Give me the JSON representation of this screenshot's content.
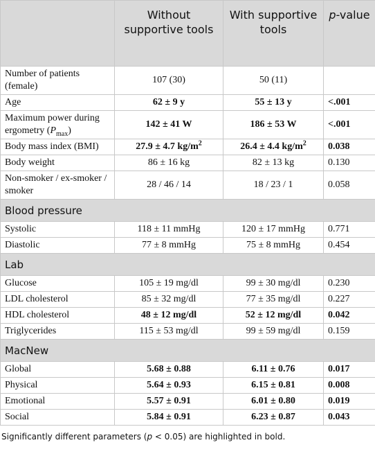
{
  "table": {
    "header": [
      "Without supportive tools",
      "With supportive tools",
      [
        "p",
        "-value"
      ]
    ],
    "general": [
      [
        "Number of patients (female)",
        "107 (30)",
        "50 (11)"
      ],
      [
        "Age",
        "62 ± 9 y",
        "55 ± 13 y",
        "<.001"
      ],
      [
        [
          "Maximum power during ergometry (",
          "P",
          "max",
          ")"
        ],
        "142 ± 41 W",
        "186 ± 53 W",
        "<.001"
      ],
      [
        "Body mass index (BMI)",
        [
          "27.9 ± 4.7 kg/m",
          "2"
        ],
        [
          "26.4 ± 4.4 kg/m",
          "2"
        ],
        "0.038"
      ],
      [
        "Body weight",
        "86 ± 16 kg",
        "82 ± 13 kg",
        "0.130"
      ],
      [
        "Non-smoker / ex-smoker / smoker",
        "28 / 46 / 14",
        "18 / 23 / 1",
        "0.058"
      ]
    ],
    "sections": [
      {
        "title": "Blood pressure",
        "rows": [
          [
            "Systolic",
            "118 ± 11 mmHg",
            "120 ± 17 mmHg",
            "0.771"
          ],
          [
            "Diastolic",
            "77 ± 8 mmHg",
            "75 ± 8 mmHg",
            "0.454"
          ]
        ]
      },
      {
        "title": "Lab",
        "rows": [
          [
            "Glucose",
            "105 ± 19 mg/dl",
            "99 ± 30 mg/dl",
            "0.230"
          ],
          [
            "LDL cholesterol",
            "85 ± 32 mg/dl",
            "77 ± 35 mg/dl",
            "0.227"
          ],
          [
            "HDL cholesterol",
            "48 ± 12 mg/dl",
            "52 ± 12 mg/dl",
            "0.042"
          ],
          [
            "Triglycerides",
            "115 ± 53 mg/dl",
            "99 ± 59 mg/dl",
            "0.159"
          ]
        ]
      },
      {
        "title": "MacNew",
        "rows": [
          [
            "Global",
            "5.68 ± 0.88",
            "6.11 ± 0.76",
            "0.017"
          ],
          [
            "Physical",
            "5.64 ± 0.93",
            "6.15 ± 0.81",
            "0.008"
          ],
          [
            "Emotional",
            "5.57 ± 0.91",
            "6.01 ± 0.80",
            "0.019"
          ],
          [
            "Social",
            "5.84 ± 0.91",
            "6.23 ± 0.87",
            "0.043"
          ]
        ]
      }
    ]
  },
  "footnote": [
    "Significantly different parameters (",
    "p",
    " < 0.05) are highlighted in bold."
  ]
}
